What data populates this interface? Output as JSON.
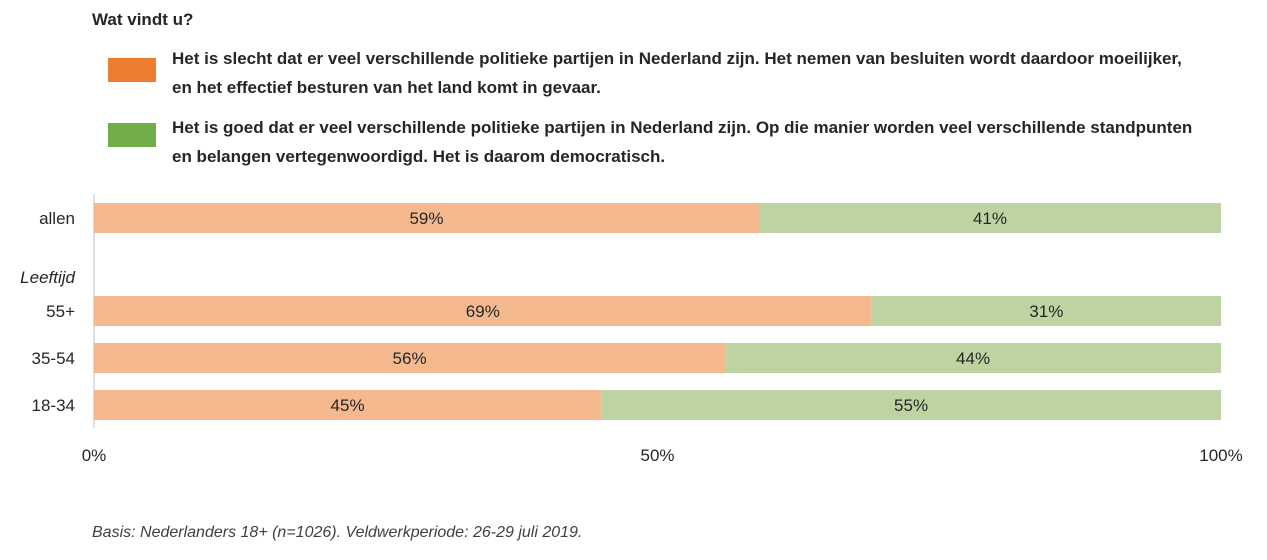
{
  "question": "Wat vindt u?",
  "legend": [
    {
      "text": "Het is slecht dat er veel verschillende politieke partijen in Nederland zijn. Het nemen van besluiten wordt daardoor moeilijker, en het effectief besturen van het land komt in gevaar.",
      "swatch_color": "#ED7D31"
    },
    {
      "text": "Het is goed dat er veel verschillende politieke partijen in Nederland zijn. Op die manier worden veel verschillende standpunten en belangen vertegenwoordigd. Het is daarom democratisch.",
      "swatch_color": "#70AD47"
    }
  ],
  "chart_data": {
    "type": "bar",
    "orientation": "horizontal",
    "stacked": true,
    "percent_stacked": true,
    "categories": [
      "allen",
      "55+",
      "35-54",
      "18-34"
    ],
    "group_label": "Leeftijd",
    "series": [
      {
        "values": [
          59,
          69,
          56,
          45
        ],
        "labels": [
          "59%",
          "69%",
          "56%",
          "45%"
        ],
        "color": "#F4B98F"
      },
      {
        "values": [
          41,
          31,
          44,
          55
        ],
        "labels": [
          "41%",
          "31%",
          "44%",
          "55%"
        ],
        "color": "#BDD4A2"
      }
    ],
    "xlim": [
      0,
      100
    ],
    "x_ticks": [
      {
        "value": 0,
        "label": "0%"
      },
      {
        "value": 50,
        "label": "50%"
      },
      {
        "value": 100,
        "label": "100%"
      }
    ],
    "grid": false,
    "legend_position": "top"
  },
  "footnote": "Basis: Nederlanders 18+ (n=1026). Veldwerkperiode: 26-29 juli 2019."
}
